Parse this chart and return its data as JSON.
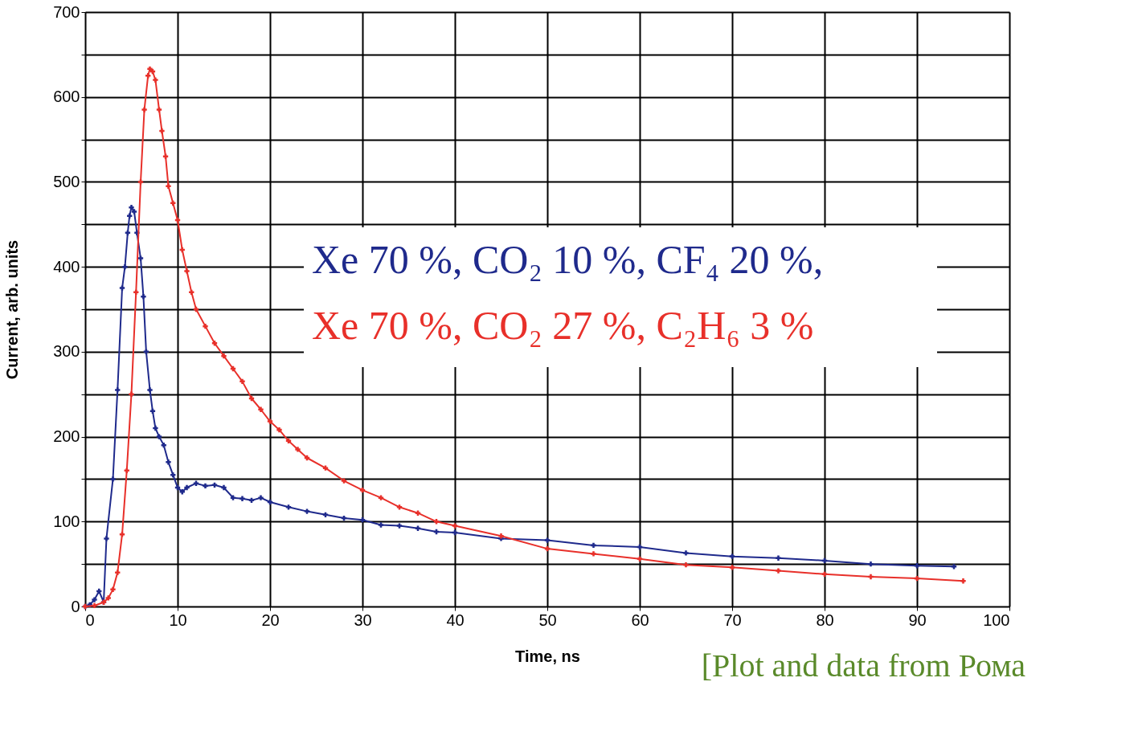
{
  "chart_data": {
    "type": "line",
    "xlabel": "Time, ns",
    "ylabel": "Current, arb. units",
    "xlim": [
      0,
      100
    ],
    "xticks": [
      0,
      10,
      20,
      30,
      40,
      50,
      60,
      70,
      80,
      90,
      100
    ],
    "ylim": [
      0,
      700
    ],
    "yticks": [
      0,
      {
        "value": 50,
        "label": null
      },
      100,
      {
        "value": 150,
        "label": null
      },
      200,
      {
        "value": 250,
        "label": null
      },
      300,
      {
        "value": 350,
        "label": null
      },
      400,
      {
        "value": 450,
        "label": null
      },
      500,
      {
        "value": 550,
        "label": null
      },
      600,
      {
        "value": 650,
        "label": null
      },
      700
    ],
    "grid": true,
    "marker": "cross",
    "line_style": "solid",
    "annotations": [
      "[Plot and data from Рома"
    ],
    "series": [
      {
        "name": "Xe 70 %, CO₂ 10 %, CF₄ 20 %,",
        "color": "#1f2a8c",
        "x": [
          0,
          0.5,
          1,
          1.5,
          2,
          2.3,
          3,
          3.5,
          4,
          4.3,
          4.6,
          4.8,
          5,
          5.3,
          5.6,
          6,
          6.3,
          6.6,
          7,
          7.3,
          7.6,
          8,
          8.5,
          9,
          9.5,
          10,
          10.5,
          11,
          12,
          13,
          14,
          15,
          16,
          17,
          18,
          19,
          20,
          22,
          24,
          26,
          28,
          30,
          32,
          34,
          36,
          38,
          40,
          45,
          50,
          55,
          60,
          65,
          70,
          75,
          80,
          85,
          90,
          94
        ],
        "values": [
          0,
          2,
          8,
          18,
          5,
          80,
          150,
          255,
          375,
          400,
          440,
          460,
          470,
          465,
          440,
          410,
          365,
          300,
          255,
          230,
          210,
          200,
          190,
          170,
          155,
          140,
          135,
          140,
          145,
          142,
          143,
          140,
          128,
          127,
          125,
          128,
          123,
          117,
          112,
          108,
          104,
          102,
          96,
          95,
          92,
          88,
          87,
          80,
          78,
          72,
          70,
          63,
          59,
          57,
          54,
          50,
          48,
          47
        ]
      },
      {
        "name": "Xe 70 %, CO₂ 27 %, C₂H₆ 3 %",
        "color": "#e8302a",
        "x": [
          0,
          1,
          2,
          2.5,
          3,
          3.5,
          4,
          4.5,
          5,
          5.5,
          6,
          6.4,
          6.8,
          7,
          7.3,
          7.6,
          8,
          8.3,
          8.7,
          9,
          9.5,
          10,
          10.5,
          11,
          11.5,
          12,
          13,
          14,
          15,
          16,
          17,
          18,
          19,
          20,
          21,
          22,
          23,
          24,
          26,
          28,
          30,
          32,
          34,
          36,
          38,
          40,
          45,
          50,
          55,
          60,
          65,
          70,
          75,
          80,
          85,
          90,
          95
        ],
        "values": [
          0,
          1,
          5,
          10,
          20,
          40,
          85,
          160,
          250,
          370,
          500,
          585,
          625,
          633,
          630,
          620,
          585,
          560,
          530,
          495,
          475,
          455,
          420,
          395,
          370,
          350,
          330,
          310,
          295,
          280,
          265,
          245,
          232,
          218,
          208,
          195,
          185,
          175,
          163,
          148,
          137,
          128,
          117,
          110,
          100,
          95,
          83,
          68,
          62,
          56,
          49,
          46,
          42,
          38,
          35,
          33,
          30
        ]
      }
    ]
  }
}
